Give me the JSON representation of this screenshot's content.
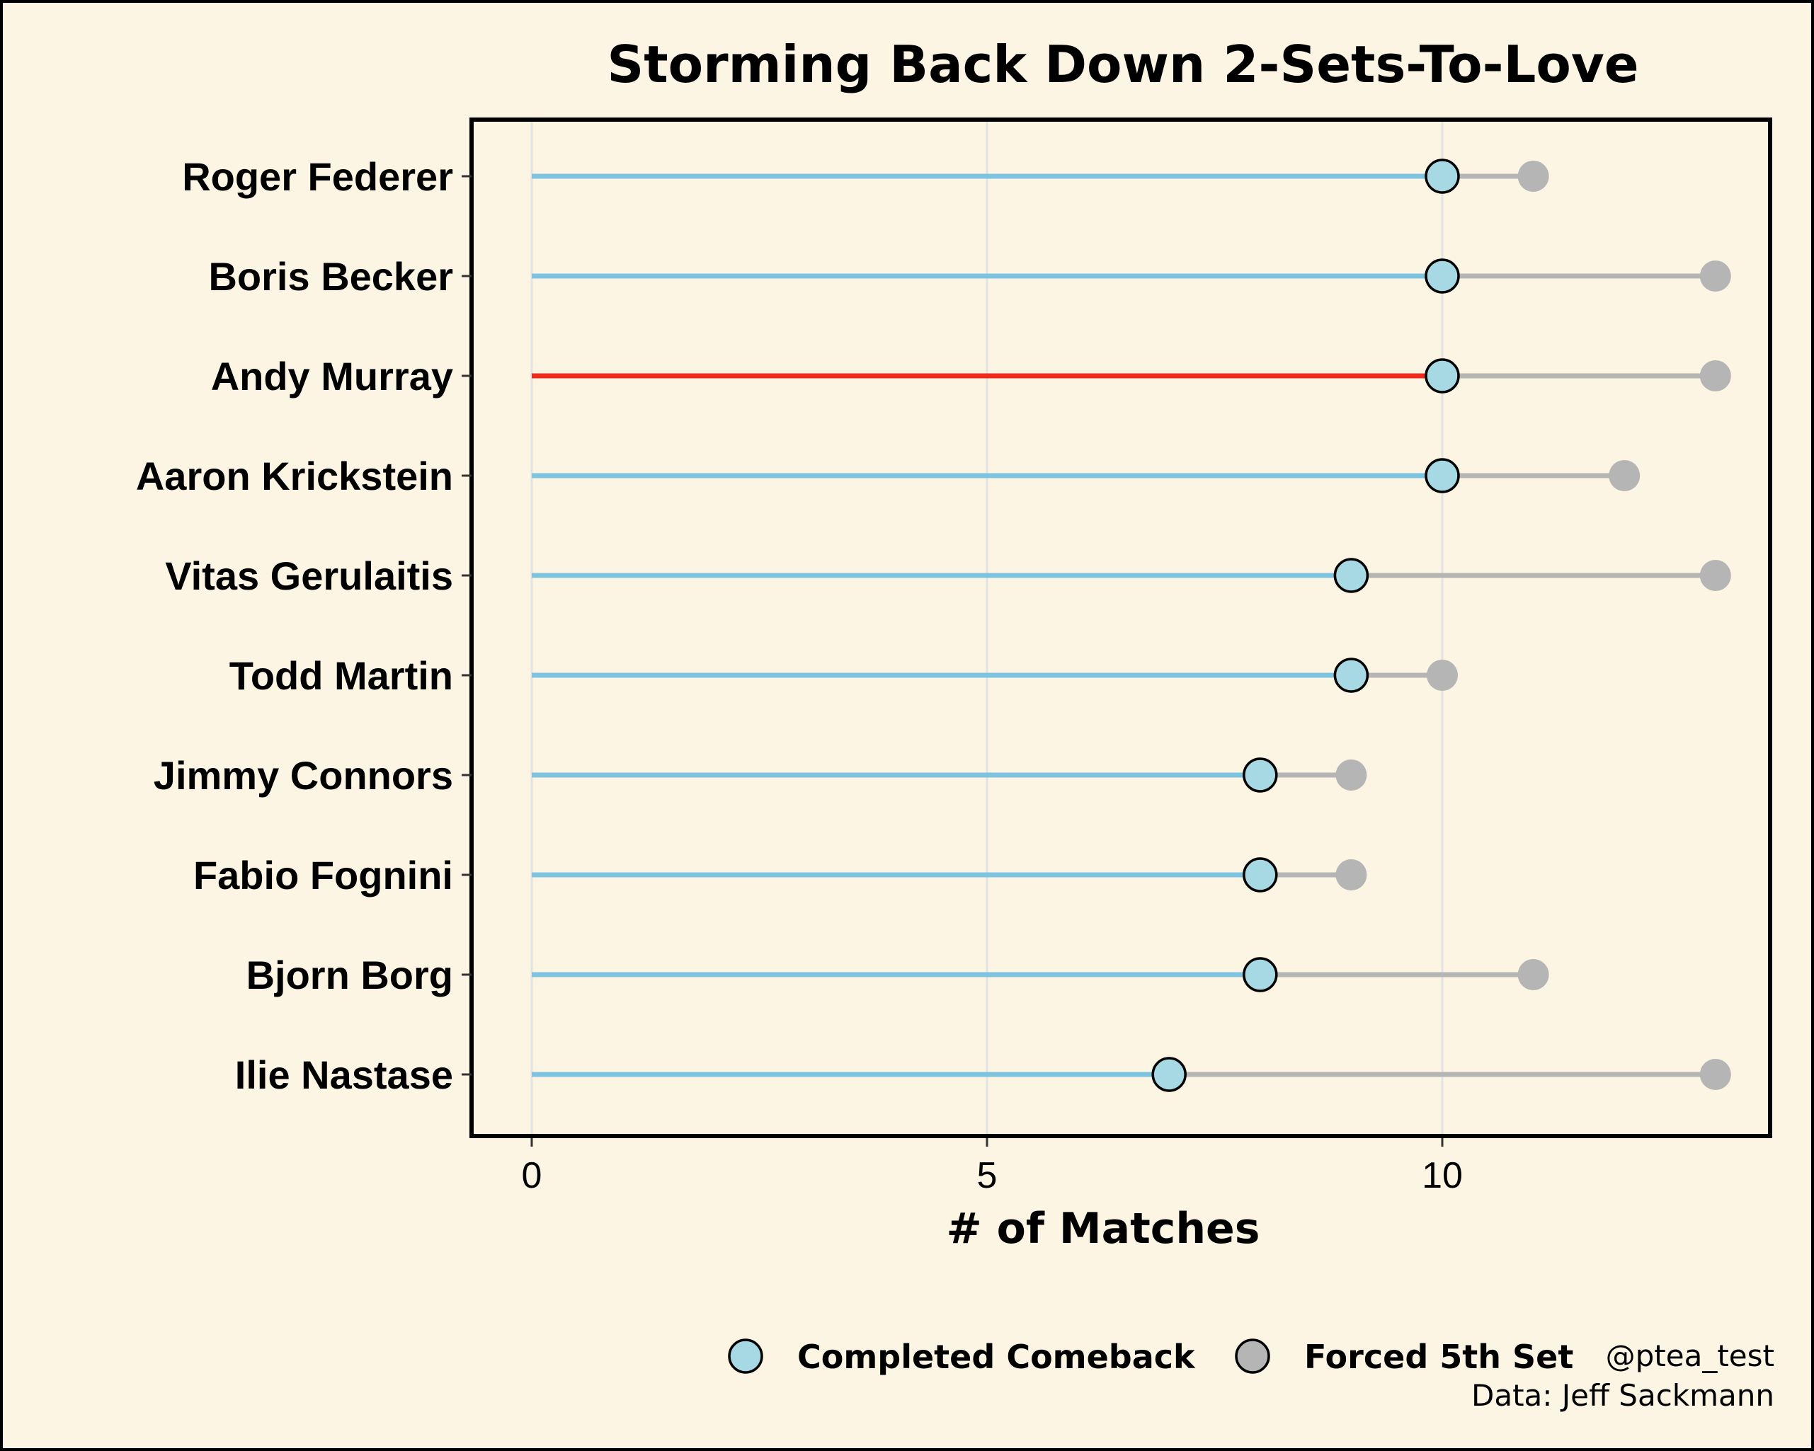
{
  "chart_data": {
    "type": "lollipop",
    "title": "Storming Back Down 2-Sets-To-Love",
    "xlabel": "# of Matches",
    "ylabel": "",
    "xlim": [
      -0.6,
      13.3
    ],
    "xticks": [
      0,
      5,
      10
    ],
    "grid": true,
    "players": [
      "Roger Federer",
      "Boris Becker",
      "Andy Murray",
      "Aaron Krickstein",
      "Vitas Gerulaitis",
      "Todd Martin",
      "Jimmy Connors",
      "Fabio Fognini",
      "Bjorn Borg",
      "Ilie Nastase"
    ],
    "series": [
      {
        "name": "Completed Comeback",
        "values": [
          10,
          10,
          10,
          10,
          9,
          9,
          8,
          8,
          8,
          7
        ]
      },
      {
        "name": "Forced 5th Set",
        "values": [
          11,
          13,
          13,
          12,
          13,
          10,
          9,
          9,
          11,
          13
        ]
      }
    ],
    "highlight": "Andy Murray",
    "legend_position": "bottom-right",
    "colors": {
      "background": "#fdf5e4",
      "line": "#7ec3e0",
      "highlight_line": "#ee2a1a",
      "completed_dot": "#a6d9e3",
      "forced_dot": "#b5b5b5",
      "grid": "#e3e3e3"
    }
  },
  "caption": {
    "handle": "@ptea_test",
    "source": "Data: Jeff Sackmann"
  }
}
